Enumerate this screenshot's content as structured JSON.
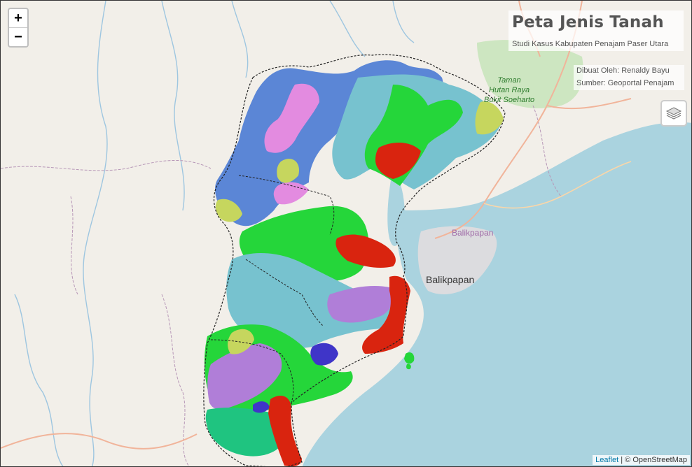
{
  "map": {
    "title": "Peta Jenis Tanah",
    "subtitle": "Studi Kasus Kabupaten Penajam Paser Utara",
    "credit_author": "Dibuat Oleh: Renaldy Bayu",
    "credit_source": "Sumber: Geoportal Penajam"
  },
  "controls": {
    "zoom_in": "+",
    "zoom_out": "−",
    "layers_icon": "layers-icon"
  },
  "labels": {
    "city": "Balikpapan",
    "city_admin": "Balikpapan",
    "park_line1": "Taman",
    "park_line2": "Hutan Raya",
    "park_line3": "Bukit Soeharto"
  },
  "attribution": {
    "leaflet": "Leaflet",
    "separator": " | © ",
    "osm": "OpenStreetMap"
  },
  "colors": {
    "sea": "#aad3df",
    "land": "#f2efe9",
    "soil_blue": "#5b86d6",
    "soil_cyan": "#77c2cf",
    "soil_green": "#25d63a",
    "soil_pink": "#e38be0",
    "soil_purple": "#b07ed8",
    "soil_olive": "#c6d65e",
    "soil_red": "#d9240f",
    "soil_teal": "#1fc480",
    "soil_navy": "#3f35c8"
  }
}
